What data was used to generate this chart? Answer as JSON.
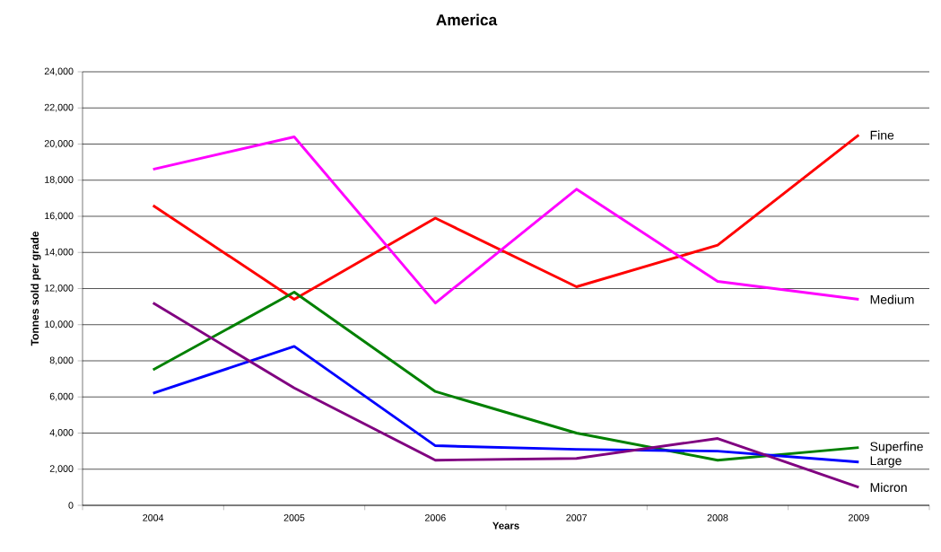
{
  "chart_data": {
    "type": "line",
    "title": "America",
    "xlabel": "Years",
    "ylabel": "Tonnes sold per grade",
    "categories": [
      "2004",
      "2005",
      "2006",
      "2007",
      "2008",
      "2009"
    ],
    "series": [
      {
        "name": "Fine",
        "color": "#ff0000",
        "values": [
          16600,
          11400,
          15900,
          12100,
          14400,
          20500
        ]
      },
      {
        "name": "Medium",
        "color": "#ff00ff",
        "values": [
          18600,
          20400,
          11200,
          17500,
          12400,
          11400
        ]
      },
      {
        "name": "Superfine",
        "color": "#008000",
        "values": [
          7500,
          11800,
          6300,
          4000,
          2500,
          3200
        ]
      },
      {
        "name": "Large",
        "color": "#0000ff",
        "values": [
          6200,
          8800,
          3300,
          3100,
          3000,
          2400
        ]
      },
      {
        "name": "Micron",
        "color": "#800080",
        "values": [
          11200,
          6500,
          2500,
          2600,
          3700,
          1000
        ]
      }
    ],
    "ylim": [
      0,
      24000
    ],
    "yticks": [
      0,
      {
        "value": 2000,
        "label": "2,000"
      },
      {
        "value": 4000,
        "label": "4,000"
      },
      {
        "value": 6000,
        "label": "6,000"
      },
      {
        "value": 8000,
        "label": "8,000"
      },
      {
        "value": 10000,
        "label": "10,000"
      },
      {
        "value": 12000,
        "label": "12,000"
      },
      {
        "value": 14000,
        "label": "14,000"
      },
      {
        "value": 16000,
        "label": "16,000"
      },
      {
        "value": 18000,
        "label": "18,000"
      },
      {
        "value": 20000,
        "label": "20,000"
      },
      {
        "value": 22000,
        "label": "22,000"
      },
      {
        "value": 24000,
        "label": "24,000"
      }
    ],
    "grid": "y"
  }
}
